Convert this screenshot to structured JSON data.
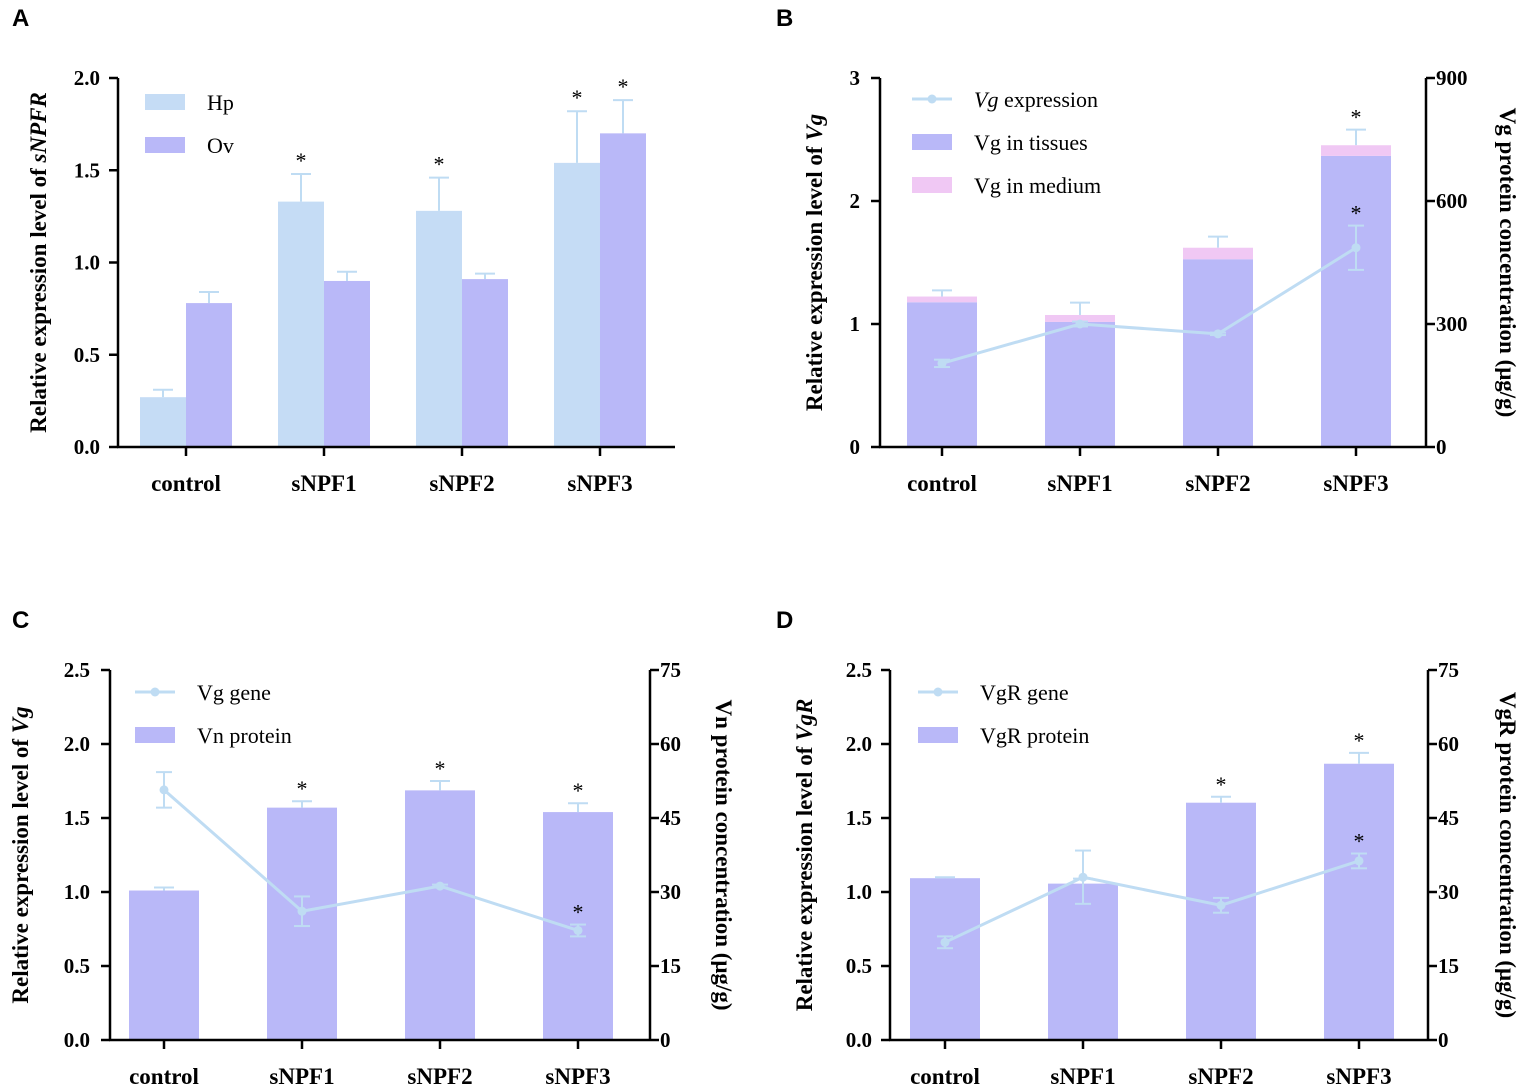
{
  "colors": {
    "hp": "#c5dcf5",
    "ov": "#b9b8f8",
    "tissue": "#b9b8f8",
    "medium": "#f0c8f4",
    "line": "#bfdcf3",
    "axis": "#000000"
  },
  "chart_data": [
    {
      "id": "A",
      "panel_label": "A",
      "type": "bar",
      "ylabel_prefix": "Relative expression level of ",
      "ylabel_italic": "sNPFR",
      "ylim": [
        0,
        2.0
      ],
      "yticks": [
        "0.0",
        "0.5",
        "1.0",
        "1.5",
        "2.0"
      ],
      "categories": [
        "control",
        "sNPF1",
        "sNPF2",
        "sNPF3"
      ],
      "legend": [
        {
          "label": "Hp",
          "kind": "bar",
          "color": "#c5dcf5"
        },
        {
          "label": "Ov",
          "kind": "bar",
          "color": "#b9b8f8"
        }
      ],
      "series": [
        {
          "name": "Hp",
          "values": [
            0.27,
            1.33,
            1.28,
            1.54
          ],
          "errors": [
            0.04,
            0.15,
            0.18,
            0.28
          ],
          "stars": [
            "",
            "*",
            "*",
            "*"
          ]
        },
        {
          "name": "Ov",
          "values": [
            0.78,
            0.9,
            0.91,
            1.7
          ],
          "errors": [
            0.06,
            0.05,
            0.03,
            0.18
          ],
          "stars": [
            "",
            "",
            "",
            "*"
          ]
        }
      ]
    },
    {
      "id": "B",
      "panel_label": "B",
      "type": "bar+line",
      "ylabel_prefix": "Relative expression level of ",
      "ylabel_italic": "Vg",
      "ylabel_right": "Vg protein concentration (μg/g)",
      "ylim": [
        0,
        3
      ],
      "yticks": [
        "0",
        "1",
        "2",
        "3"
      ],
      "ylim_right": [
        0,
        900
      ],
      "yticks_right": [
        "0",
        "300",
        "600",
        "900"
      ],
      "categories": [
        "control",
        "sNPF1",
        "sNPF2",
        "sNPF3"
      ],
      "legend": [
        {
          "label_italic": "Vg",
          "label": " expression",
          "kind": "line",
          "color": "#bfdcf3"
        },
        {
          "label": "Vg in tissues",
          "kind": "bar",
          "color": "#b9b8f8"
        },
        {
          "label": "Vg in medium",
          "kind": "bar",
          "color": "#f0c8f4"
        }
      ],
      "stacked_bars": {
        "tissues": [
          353,
          305,
          458,
          710
        ],
        "medium": [
          14,
          17,
          28,
          26
        ],
        "errors": [
          15,
          30,
          27,
          38
        ],
        "stars": [
          "",
          "",
          "",
          "*"
        ]
      },
      "line": {
        "name": "Vg expression",
        "values": [
          0.68,
          1.0,
          0.92,
          1.62
        ],
        "errors": [
          0.03,
          0.02,
          0.01,
          0.18
        ],
        "stars": [
          "",
          "",
          "",
          "*"
        ]
      }
    },
    {
      "id": "C",
      "panel_label": "C",
      "type": "bar+line",
      "ylabel_prefix": "Relative expression level of ",
      "ylabel_italic": "Vg",
      "ylabel_right": "Vn protein concentration (μg/g)",
      "ylim": [
        0,
        2.5
      ],
      "yticks": [
        "0.0",
        "0.5",
        "1.0",
        "1.5",
        "2.0",
        "2.5"
      ],
      "ylim_right": [
        0,
        75
      ],
      "yticks_right": [
        "0",
        "15",
        "30",
        "45",
        "60",
        "75"
      ],
      "categories": [
        "control",
        "sNPF1",
        "sNPF2",
        "sNPF3"
      ],
      "legend": [
        {
          "label": "Vg gene",
          "kind": "line",
          "color": "#bfdcf3"
        },
        {
          "label": "Vn protein",
          "kind": "bar",
          "color": "#b9b8f8"
        }
      ],
      "bars": {
        "values": [
          30.3,
          47.1,
          50.6,
          46.2
        ],
        "errors": [
          0.6,
          1.3,
          1.9,
          1.8
        ],
        "stars": [
          "",
          "*",
          "*",
          "*"
        ]
      },
      "line": {
        "name": "Vg gene",
        "values": [
          1.69,
          0.87,
          1.04,
          0.74
        ],
        "errors": [
          0.12,
          0.1,
          0.01,
          0.04
        ],
        "stars": [
          "",
          "",
          "",
          "*"
        ]
      }
    },
    {
      "id": "D",
      "panel_label": "D",
      "type": "bar+line",
      "ylabel_prefix": "Relative expression level of ",
      "ylabel_italic": "VgR",
      "ylabel_right": "VgR protein concentration (μg/g)",
      "ylim": [
        0,
        2.5
      ],
      "yticks": [
        "0.0",
        "0.5",
        "1.0",
        "1.5",
        "2.0",
        "2.5"
      ],
      "ylim_right": [
        0,
        75
      ],
      "yticks_right": [
        "0",
        "15",
        "30",
        "45",
        "60",
        "75"
      ],
      "categories": [
        "control",
        "sNPF1",
        "sNPF2",
        "sNPF3"
      ],
      "legend": [
        {
          "label": "VgR gene",
          "kind": "line",
          "color": "#bfdcf3"
        },
        {
          "label": "VgR protein",
          "kind": "bar",
          "color": "#b9b8f8"
        }
      ],
      "bars": {
        "values": [
          32.8,
          31.7,
          48.1,
          56.0
        ],
        "errors": [
          0.2,
          1.0,
          1.2,
          2.2
        ],
        "stars": [
          "",
          "",
          "*",
          "*"
        ]
      },
      "line": {
        "name": "VgR gene",
        "values": [
          0.66,
          1.1,
          0.91,
          1.21
        ],
        "errors": [
          0.04,
          0.18,
          0.05,
          0.05
        ],
        "stars": [
          "",
          "",
          "",
          "*"
        ]
      }
    }
  ]
}
